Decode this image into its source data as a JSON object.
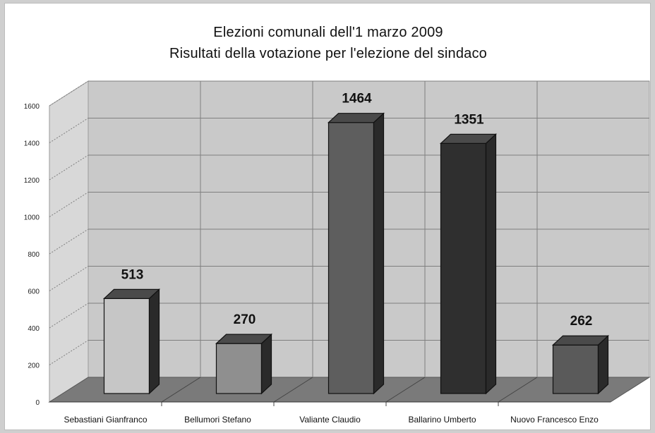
{
  "chart_data": {
    "type": "bar",
    "title": "Elezioni comunali dell'1 marzo 2009",
    "subtitle": "Risultati della votazione per l'elezione del sindaco",
    "categories": [
      "Sebastiani Gianfranco",
      "Bellumori Stefano",
      "Valiante Claudio",
      "Ballarino Umberto",
      "Nuovo Francesco Enzo"
    ],
    "values": [
      513,
      270,
      1464,
      1351,
      262
    ],
    "value_labels": [
      "513",
      "270",
      "1464",
      "1351",
      "262"
    ],
    "bar_colors": [
      "#c6c6c6",
      "#8f8f8f",
      "#5e5e5e",
      "#2f2f2f",
      "#5a5a5a"
    ],
    "yticks": [
      0,
      200,
      400,
      600,
      800,
      1000,
      1200,
      1400,
      1600
    ],
    "ylim": [
      0,
      1600
    ],
    "grid": true,
    "legend": "none",
    "style": "3d-column",
    "colors": {
      "wall": "#c9c9c9",
      "floor": "#7a7a7a",
      "side_wall": "#d8d8d8",
      "grid": "#7f7f7f"
    }
  }
}
